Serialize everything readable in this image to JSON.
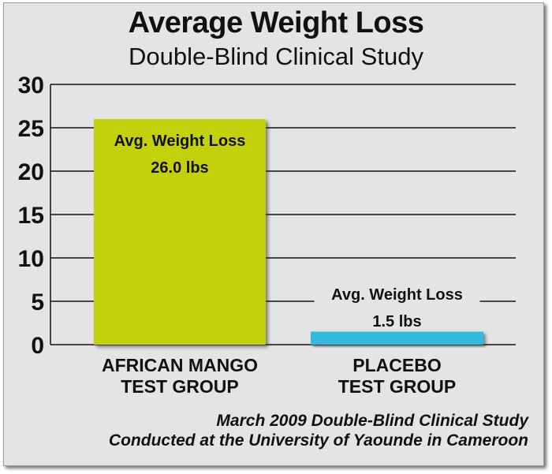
{
  "chart_data": {
    "type": "bar",
    "title": "Average Weight Loss",
    "subtitle": "Double-Blind Clinical Study",
    "categories": [
      "AFRICAN MANGO\nTEST GROUP",
      "PLACEBO\nTEST GROUP"
    ],
    "category_lines": [
      [
        "AFRICAN MANGO",
        "TEST GROUP"
      ],
      [
        "PLACEBO",
        "TEST GROUP"
      ]
    ],
    "values": [
      26.0,
      1.5
    ],
    "data_labels": [
      [
        "Avg. Weight Loss",
        "26.0 lbs"
      ],
      [
        "Avg. Weight Loss",
        "1.5 lbs"
      ]
    ],
    "colors": [
      "#c3d10a",
      "#33bbdd"
    ],
    "ylim": [
      0,
      30
    ],
    "yticks": [
      "0",
      "5",
      "10",
      "15",
      "20",
      "25",
      "30"
    ],
    "grid": true,
    "xlabel": "",
    "ylabel": "",
    "footnote": [
      "March 2009 Double-Blind Clinical Study",
      "Conducted at the University of Yaounde in Cameroon"
    ]
  }
}
